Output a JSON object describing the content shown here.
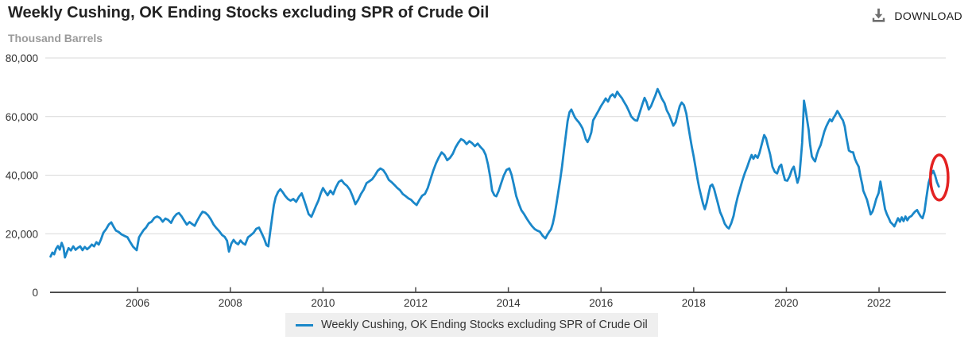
{
  "header": {
    "title": "Weekly Cushing, OK Ending Stocks excluding SPR of Crude Oil",
    "units_label": "Thousand Barrels",
    "download_label": "DOWNLOAD"
  },
  "chart_data": {
    "type": "line",
    "title": "Weekly Cushing, OK Ending Stocks excluding SPR of Crude Oil",
    "ylabel": "Thousand Barrels",
    "xlabel": "",
    "series_name": "Weekly Cushing, OK Ending Stocks excluding SPR of Crude Oil",
    "line_color": "#1a87c9",
    "grid": true,
    "legend_position": "bottom",
    "xlim": [
      2004.11,
      2023.44
    ],
    "ylim": [
      0,
      80000
    ],
    "x_ticks": [
      2006,
      2008,
      2010,
      2012,
      2014,
      2016,
      2018,
      2020,
      2022
    ],
    "y_ticks": [
      0,
      20000,
      40000,
      60000,
      80000
    ],
    "annotation": {
      "shape": "ellipse",
      "x": 2023.3,
      "y": 39200,
      "rx_years": 0.19,
      "ry_value": 7700,
      "color": "#e32222",
      "stroke_width": 3.5
    },
    "points": [
      [
        2004.12,
        12200
      ],
      [
        2004.16,
        13600
      ],
      [
        2004.2,
        13000
      ],
      [
        2004.24,
        14900
      ],
      [
        2004.28,
        15800
      ],
      [
        2004.32,
        14600
      ],
      [
        2004.36,
        16900
      ],
      [
        2004.4,
        15300
      ],
      [
        2004.43,
        11900
      ],
      [
        2004.47,
        13600
      ],
      [
        2004.51,
        15100
      ],
      [
        2004.56,
        14300
      ],
      [
        2004.61,
        15700
      ],
      [
        2004.66,
        14500
      ],
      [
        2004.71,
        15200
      ],
      [
        2004.76,
        15700
      ],
      [
        2004.81,
        14400
      ],
      [
        2004.86,
        15500
      ],
      [
        2004.91,
        14700
      ],
      [
        2004.96,
        15400
      ],
      [
        2005.01,
        16300
      ],
      [
        2005.06,
        15700
      ],
      [
        2005.11,
        17100
      ],
      [
        2005.16,
        16300
      ],
      [
        2005.21,
        18100
      ],
      [
        2005.26,
        20300
      ],
      [
        2005.32,
        21600
      ],
      [
        2005.38,
        23200
      ],
      [
        2005.43,
        23900
      ],
      [
        2005.48,
        22400
      ],
      [
        2005.53,
        21100
      ],
      [
        2005.59,
        20600
      ],
      [
        2005.65,
        19800
      ],
      [
        2005.71,
        19300
      ],
      [
        2005.78,
        18800
      ],
      [
        2005.84,
        17100
      ],
      [
        2005.9,
        15600
      ],
      [
        2005.95,
        14800
      ],
      [
        2005.98,
        14400
      ],
      [
        2006.03,
        18800
      ],
      [
        2006.08,
        20100
      ],
      [
        2006.13,
        21300
      ],
      [
        2006.18,
        22100
      ],
      [
        2006.24,
        23600
      ],
      [
        2006.3,
        24100
      ],
      [
        2006.36,
        25400
      ],
      [
        2006.42,
        25900
      ],
      [
        2006.48,
        25400
      ],
      [
        2006.54,
        24100
      ],
      [
        2006.6,
        25200
      ],
      [
        2006.66,
        24700
      ],
      [
        2006.72,
        23700
      ],
      [
        2006.78,
        25600
      ],
      [
        2006.84,
        26700
      ],
      [
        2006.89,
        27100
      ],
      [
        2006.95,
        25900
      ],
      [
        2007.0,
        24600
      ],
      [
        2007.06,
        23100
      ],
      [
        2007.12,
        24000
      ],
      [
        2007.17,
        23400
      ],
      [
        2007.23,
        22700
      ],
      [
        2007.29,
        24600
      ],
      [
        2007.35,
        26300
      ],
      [
        2007.4,
        27500
      ],
      [
        2007.46,
        27200
      ],
      [
        2007.52,
        26300
      ],
      [
        2007.58,
        24900
      ],
      [
        2007.64,
        23100
      ],
      [
        2007.7,
        21900
      ],
      [
        2007.76,
        20900
      ],
      [
        2007.82,
        19600
      ],
      [
        2007.88,
        18900
      ],
      [
        2007.93,
        17600
      ],
      [
        2007.97,
        13900
      ],
      [
        2008.02,
        16600
      ],
      [
        2008.07,
        17900
      ],
      [
        2008.12,
        16900
      ],
      [
        2008.17,
        16400
      ],
      [
        2008.22,
        17700
      ],
      [
        2008.27,
        16800
      ],
      [
        2008.32,
        16300
      ],
      [
        2008.38,
        18800
      ],
      [
        2008.44,
        19500
      ],
      [
        2008.5,
        20300
      ],
      [
        2008.56,
        21700
      ],
      [
        2008.62,
        22100
      ],
      [
        2008.68,
        20100
      ],
      [
        2008.73,
        18300
      ],
      [
        2008.78,
        16100
      ],
      [
        2008.82,
        15700
      ],
      [
        2008.86,
        20500
      ],
      [
        2008.9,
        25300
      ],
      [
        2008.94,
        29800
      ],
      [
        2008.98,
        32500
      ],
      [
        2009.03,
        34300
      ],
      [
        2009.08,
        35200
      ],
      [
        2009.13,
        34200
      ],
      [
        2009.18,
        33000
      ],
      [
        2009.24,
        31900
      ],
      [
        2009.3,
        31300
      ],
      [
        2009.36,
        31900
      ],
      [
        2009.42,
        30900
      ],
      [
        2009.48,
        32600
      ],
      [
        2009.54,
        33800
      ],
      [
        2009.59,
        31600
      ],
      [
        2009.64,
        29200
      ],
      [
        2009.69,
        26700
      ],
      [
        2009.75,
        25800
      ],
      [
        2009.8,
        27600
      ],
      [
        2009.85,
        29600
      ],
      [
        2009.9,
        31300
      ],
      [
        2009.95,
        33700
      ],
      [
        2010.0,
        35600
      ],
      [
        2010.05,
        34300
      ],
      [
        2010.1,
        33100
      ],
      [
        2010.16,
        34700
      ],
      [
        2010.22,
        33500
      ],
      [
        2010.28,
        35900
      ],
      [
        2010.34,
        37700
      ],
      [
        2010.4,
        38300
      ],
      [
        2010.46,
        37100
      ],
      [
        2010.52,
        36300
      ],
      [
        2010.58,
        35000
      ],
      [
        2010.64,
        32800
      ],
      [
        2010.7,
        30100
      ],
      [
        2010.76,
        31600
      ],
      [
        2010.82,
        33600
      ],
      [
        2010.88,
        35100
      ],
      [
        2010.94,
        37300
      ],
      [
        2011.0,
        37900
      ],
      [
        2011.06,
        38600
      ],
      [
        2011.12,
        39900
      ],
      [
        2011.18,
        41500
      ],
      [
        2011.24,
        42300
      ],
      [
        2011.3,
        41700
      ],
      [
        2011.36,
        40300
      ],
      [
        2011.42,
        38400
      ],
      [
        2011.48,
        37600
      ],
      [
        2011.54,
        36700
      ],
      [
        2011.6,
        35700
      ],
      [
        2011.66,
        34900
      ],
      [
        2011.72,
        33600
      ],
      [
        2011.78,
        32900
      ],
      [
        2011.84,
        32100
      ],
      [
        2011.9,
        31600
      ],
      [
        2011.96,
        30600
      ],
      [
        2012.02,
        29800
      ],
      [
        2012.08,
        31500
      ],
      [
        2012.14,
        33000
      ],
      [
        2012.2,
        33600
      ],
      [
        2012.26,
        35600
      ],
      [
        2012.32,
        38600
      ],
      [
        2012.38,
        41600
      ],
      [
        2012.44,
        44100
      ],
      [
        2012.5,
        46100
      ],
      [
        2012.56,
        47800
      ],
      [
        2012.62,
        46900
      ],
      [
        2012.68,
        45100
      ],
      [
        2012.74,
        45900
      ],
      [
        2012.8,
        47300
      ],
      [
        2012.86,
        49500
      ],
      [
        2012.92,
        51100
      ],
      [
        2012.98,
        52300
      ],
      [
        2013.04,
        51800
      ],
      [
        2013.1,
        50600
      ],
      [
        2013.16,
        51600
      ],
      [
        2013.22,
        50900
      ],
      [
        2013.28,
        49900
      ],
      [
        2013.34,
        50800
      ],
      [
        2013.4,
        49600
      ],
      [
        2013.46,
        48600
      ],
      [
        2013.51,
        47000
      ],
      [
        2013.56,
        43700
      ],
      [
        2013.61,
        39200
      ],
      [
        2013.65,
        34700
      ],
      [
        2013.7,
        33100
      ],
      [
        2013.74,
        32800
      ],
      [
        2013.79,
        34600
      ],
      [
        2013.84,
        37000
      ],
      [
        2013.9,
        39800
      ],
      [
        2013.96,
        41800
      ],
      [
        2014.02,
        42300
      ],
      [
        2014.07,
        40100
      ],
      [
        2014.12,
        36600
      ],
      [
        2014.17,
        32900
      ],
      [
        2014.23,
        30100
      ],
      [
        2014.28,
        28100
      ],
      [
        2014.34,
        26700
      ],
      [
        2014.4,
        25100
      ],
      [
        2014.45,
        23900
      ],
      [
        2014.51,
        22600
      ],
      [
        2014.57,
        21600
      ],
      [
        2014.62,
        21100
      ],
      [
        2014.68,
        20700
      ],
      [
        2014.74,
        19300
      ],
      [
        2014.8,
        18400
      ],
      [
        2014.84,
        19600
      ],
      [
        2014.88,
        20600
      ],
      [
        2014.92,
        21500
      ],
      [
        2014.96,
        23500
      ],
      [
        2015.0,
        26500
      ],
      [
        2015.04,
        30500
      ],
      [
        2015.08,
        34500
      ],
      [
        2015.12,
        38500
      ],
      [
        2015.16,
        43000
      ],
      [
        2015.2,
        48500
      ],
      [
        2015.24,
        53500
      ],
      [
        2015.28,
        58500
      ],
      [
        2015.32,
        61500
      ],
      [
        2015.36,
        62400
      ],
      [
        2015.4,
        61000
      ],
      [
        2015.44,
        59600
      ],
      [
        2015.48,
        58800
      ],
      [
        2015.52,
        58100
      ],
      [
        2015.56,
        57100
      ],
      [
        2015.6,
        56000
      ],
      [
        2015.64,
        54100
      ],
      [
        2015.67,
        52300
      ],
      [
        2015.71,
        51300
      ],
      [
        2015.75,
        52600
      ],
      [
        2015.79,
        54600
      ],
      [
        2015.83,
        58700
      ],
      [
        2015.87,
        59800
      ],
      [
        2015.91,
        61000
      ],
      [
        2015.95,
        62100
      ],
      [
        2016.0,
        63600
      ],
      [
        2016.05,
        64800
      ],
      [
        2016.1,
        66200
      ],
      [
        2016.15,
        65100
      ],
      [
        2016.2,
        66900
      ],
      [
        2016.25,
        67600
      ],
      [
        2016.3,
        66600
      ],
      [
        2016.35,
        68500
      ],
      [
        2016.4,
        67300
      ],
      [
        2016.45,
        66300
      ],
      [
        2016.5,
        64900
      ],
      [
        2016.55,
        63600
      ],
      [
        2016.6,
        61900
      ],
      [
        2016.65,
        60100
      ],
      [
        2016.7,
        59200
      ],
      [
        2016.74,
        58700
      ],
      [
        2016.78,
        58600
      ],
      [
        2016.84,
        61600
      ],
      [
        2016.9,
        64600
      ],
      [
        2016.94,
        66400
      ],
      [
        2016.98,
        65000
      ],
      [
        2017.03,
        62400
      ],
      [
        2017.08,
        63600
      ],
      [
        2017.13,
        65600
      ],
      [
        2017.17,
        67100
      ],
      [
        2017.22,
        69400
      ],
      [
        2017.26,
        68100
      ],
      [
        2017.31,
        66200
      ],
      [
        2017.37,
        64600
      ],
      [
        2017.42,
        62100
      ],
      [
        2017.47,
        60600
      ],
      [
        2017.52,
        58600
      ],
      [
        2017.56,
        56900
      ],
      [
        2017.61,
        58100
      ],
      [
        2017.65,
        60600
      ],
      [
        2017.7,
        63600
      ],
      [
        2017.74,
        64800
      ],
      [
        2017.79,
        63900
      ],
      [
        2017.84,
        61100
      ],
      [
        2017.88,
        57100
      ],
      [
        2017.92,
        53200
      ],
      [
        2017.96,
        49600
      ],
      [
        2018.0,
        46400
      ],
      [
        2018.04,
        42600
      ],
      [
        2018.08,
        38900
      ],
      [
        2018.12,
        35600
      ],
      [
        2018.16,
        32900
      ],
      [
        2018.2,
        30300
      ],
      [
        2018.24,
        28400
      ],
      [
        2018.28,
        30600
      ],
      [
        2018.32,
        33600
      ],
      [
        2018.36,
        36300
      ],
      [
        2018.4,
        36800
      ],
      [
        2018.44,
        35300
      ],
      [
        2018.48,
        32900
      ],
      [
        2018.52,
        30600
      ],
      [
        2018.57,
        27400
      ],
      [
        2018.62,
        25600
      ],
      [
        2018.67,
        23400
      ],
      [
        2018.72,
        22300
      ],
      [
        2018.76,
        21800
      ],
      [
        2018.81,
        23600
      ],
      [
        2018.86,
        26100
      ],
      [
        2018.9,
        29300
      ],
      [
        2018.95,
        32600
      ],
      [
        2019.0,
        35300
      ],
      [
        2019.05,
        38100
      ],
      [
        2019.1,
        40600
      ],
      [
        2019.15,
        42600
      ],
      [
        2019.2,
        44900
      ],
      [
        2019.25,
        46900
      ],
      [
        2019.29,
        45600
      ],
      [
        2019.33,
        46800
      ],
      [
        2019.38,
        45900
      ],
      [
        2019.42,
        47600
      ],
      [
        2019.47,
        50600
      ],
      [
        2019.52,
        53700
      ],
      [
        2019.56,
        52600
      ],
      [
        2019.6,
        50100
      ],
      [
        2019.65,
        47100
      ],
      [
        2019.7,
        42900
      ],
      [
        2019.75,
        41100
      ],
      [
        2019.8,
        40600
      ],
      [
        2019.85,
        42900
      ],
      [
        2019.89,
        43600
      ],
      [
        2019.93,
        40600
      ],
      [
        2019.97,
        38300
      ],
      [
        2020.02,
        38100
      ],
      [
        2020.07,
        39600
      ],
      [
        2020.12,
        41900
      ],
      [
        2020.16,
        42900
      ],
      [
        2020.2,
        40100
      ],
      [
        2020.24,
        37400
      ],
      [
        2020.28,
        39600
      ],
      [
        2020.31,
        45100
      ],
      [
        2020.34,
        51100
      ],
      [
        2020.36,
        57600
      ],
      [
        2020.38,
        65400
      ],
      [
        2020.42,
        61900
      ],
      [
        2020.45,
        58600
      ],
      [
        2020.48,
        55600
      ],
      [
        2020.51,
        50600
      ],
      [
        2020.55,
        46400
      ],
      [
        2020.59,
        45300
      ],
      [
        2020.62,
        44700
      ],
      [
        2020.66,
        47100
      ],
      [
        2020.7,
        48900
      ],
      [
        2020.74,
        50300
      ],
      [
        2020.78,
        52600
      ],
      [
        2020.82,
        54900
      ],
      [
        2020.86,
        56600
      ],
      [
        2020.9,
        57900
      ],
      [
        2020.94,
        59100
      ],
      [
        2020.98,
        58400
      ],
      [
        2021.02,
        59600
      ],
      [
        2021.06,
        60600
      ],
      [
        2021.1,
        61900
      ],
      [
        2021.14,
        60900
      ],
      [
        2021.18,
        59700
      ],
      [
        2021.22,
        58700
      ],
      [
        2021.26,
        56600
      ],
      [
        2021.3,
        52600
      ],
      [
        2021.35,
        48400
      ],
      [
        2021.4,
        47900
      ],
      [
        2021.44,
        47800
      ],
      [
        2021.48,
        45600
      ],
      [
        2021.52,
        44100
      ],
      [
        2021.56,
        42900
      ],
      [
        2021.6,
        39600
      ],
      [
        2021.64,
        36600
      ],
      [
        2021.66,
        34700
      ],
      [
        2021.7,
        33100
      ],
      [
        2021.74,
        31600
      ],
      [
        2021.78,
        29100
      ],
      [
        2021.82,
        26600
      ],
      [
        2021.86,
        27600
      ],
      [
        2021.9,
        29600
      ],
      [
        2021.94,
        31900
      ],
      [
        2021.99,
        33900
      ],
      [
        2022.03,
        37800
      ],
      [
        2022.07,
        34100
      ],
      [
        2022.1,
        31100
      ],
      [
        2022.13,
        28400
      ],
      [
        2022.17,
        26600
      ],
      [
        2022.21,
        25300
      ],
      [
        2022.25,
        23900
      ],
      [
        2022.29,
        23300
      ],
      [
        2022.33,
        22500
      ],
      [
        2022.37,
        23900
      ],
      [
        2022.41,
        25300
      ],
      [
        2022.45,
        24100
      ],
      [
        2022.49,
        25600
      ],
      [
        2022.53,
        24300
      ],
      [
        2022.57,
        25900
      ],
      [
        2022.61,
        24600
      ],
      [
        2022.65,
        25600
      ],
      [
        2022.7,
        26100
      ],
      [
        2022.74,
        26900
      ],
      [
        2022.78,
        27600
      ],
      [
        2022.82,
        28100
      ],
      [
        2022.86,
        26900
      ],
      [
        2022.9,
        25900
      ],
      [
        2022.94,
        25300
      ],
      [
        2022.98,
        27600
      ],
      [
        2023.02,
        32100
      ],
      [
        2023.07,
        37400
      ],
      [
        2023.12,
        40100
      ],
      [
        2023.17,
        41500
      ],
      [
        2023.21,
        39900
      ],
      [
        2023.25,
        37600
      ],
      [
        2023.29,
        36100
      ]
    ]
  }
}
